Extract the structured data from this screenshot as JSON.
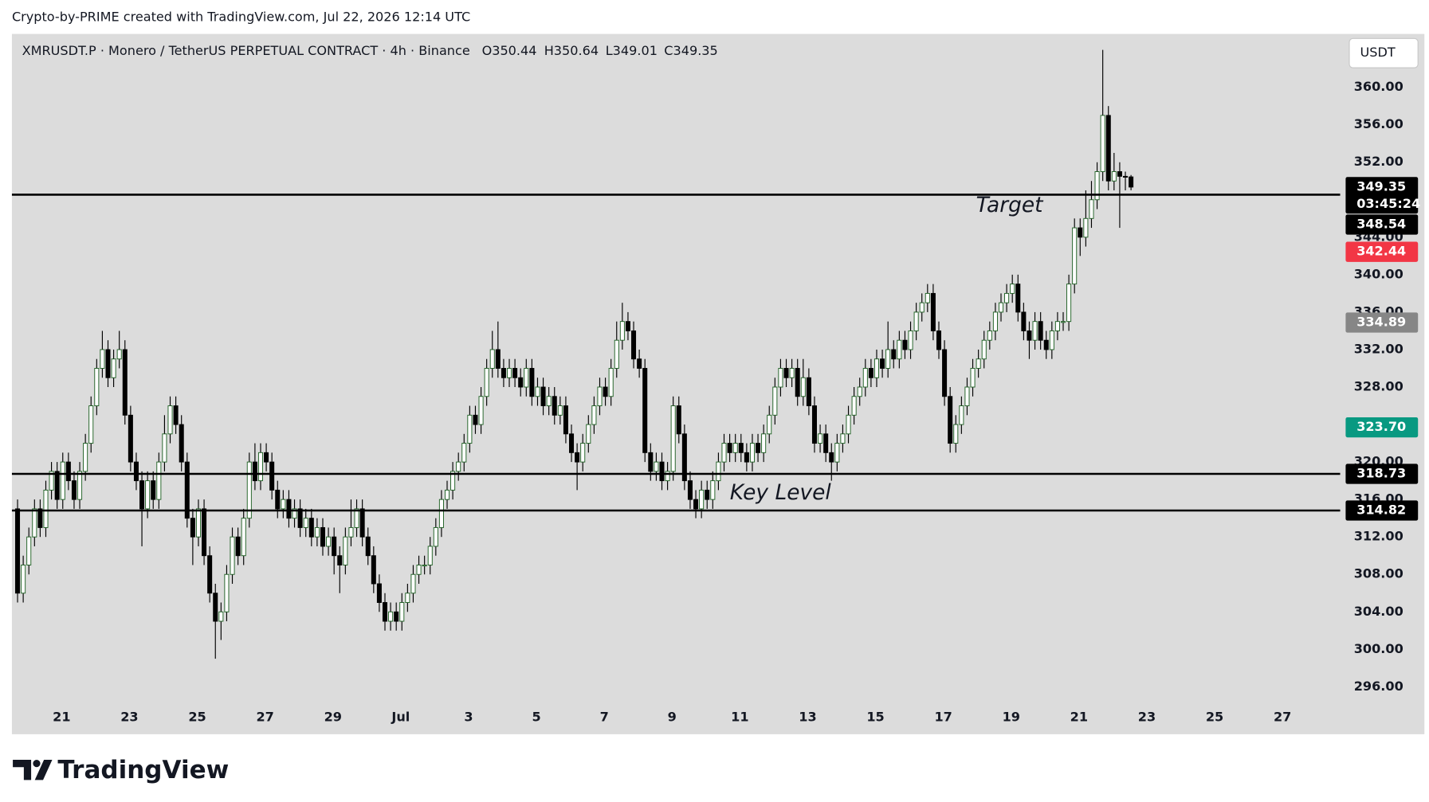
{
  "header": "Crypto-by-PRIME created with TradingView.com, Jul 22, 2026 12:14 UTC",
  "chart_data": {
    "type": "candlestick",
    "title": "XMRUSDT.P · Monero / TetherUS PERPETUAL CONTRACT · 4h · Binance",
    "ohlc_legend": [
      "O350.44",
      "H350.64",
      "L349.01",
      "C349.35"
    ],
    "currency": "USDT",
    "up_color": "#ffffff",
    "up_border": "#1b5e20",
    "down_color": "#000000",
    "open": [
      315,
      306,
      309,
      312,
      315,
      313,
      317,
      319,
      316,
      320,
      318,
      316,
      319,
      322,
      326,
      330,
      332,
      329,
      331,
      332,
      325,
      320,
      318,
      315,
      318,
      316,
      320,
      323,
      326,
      324,
      320,
      314,
      312,
      315,
      310,
      306,
      303,
      304,
      308,
      312,
      310,
      314,
      320,
      318,
      321,
      320,
      317,
      315,
      316,
      314,
      315,
      313,
      314,
      312,
      313,
      311,
      312,
      310,
      309,
      312,
      313,
      315,
      312,
      310,
      307,
      305,
      303,
      304,
      303,
      305,
      306,
      308,
      309,
      309,
      311,
      313,
      316,
      317,
      319,
      320,
      322,
      325,
      324,
      327,
      330,
      332,
      330,
      329,
      330,
      329,
      328,
      330,
      327,
      328,
      326,
      327,
      325,
      326,
      323,
      321,
      320,
      322,
      324,
      326,
      328,
      327,
      330,
      333,
      335,
      334,
      331,
      330,
      321,
      319,
      320,
      318,
      319,
      326,
      323,
      318,
      316,
      315,
      317,
      316,
      318,
      320,
      322,
      321,
      322,
      321,
      320,
      322,
      321,
      323,
      325,
      328,
      330,
      329,
      330,
      327,
      329,
      326,
      322,
      323,
      321,
      320,
      322,
      323,
      325,
      327,
      328,
      330,
      329,
      331,
      330,
      332,
      331,
      333,
      332,
      334,
      336,
      337,
      338,
      334,
      332,
      327,
      322,
      324,
      326,
      328,
      330,
      331,
      333,
      334,
      336,
      337,
      338,
      339,
      336,
      334,
      333,
      335,
      333,
      332,
      334,
      335,
      335,
      339,
      345,
      344,
      346,
      348,
      351,
      357,
      350,
      351,
      350.5,
      350.44
    ],
    "high": [
      316,
      310,
      313,
      316,
      316,
      318,
      320,
      320,
      321,
      321,
      319,
      320,
      323,
      327,
      331,
      334,
      333,
      332,
      334,
      333,
      326,
      321,
      319,
      319,
      319,
      321,
      325,
      327,
      327,
      325,
      321,
      315,
      316,
      316,
      311,
      307,
      305,
      309,
      313,
      313,
      315,
      321,
      322,
      322,
      322,
      321,
      318,
      317,
      317,
      316,
      316,
      315,
      315,
      314,
      314,
      313,
      313,
      311,
      313,
      316,
      316,
      316,
      313,
      311,
      308,
      306,
      305,
      305,
      306,
      307,
      309,
      310,
      310,
      312,
      314,
      317,
      318,
      320,
      321,
      323,
      326,
      326,
      328,
      331,
      334,
      335,
      331,
      331,
      331,
      330,
      331,
      331,
      329,
      329,
      328,
      328,
      327,
      327,
      324,
      322,
      323,
      325,
      327,
      329,
      329,
      331,
      335,
      337,
      336,
      335,
      332,
      331,
      322,
      321,
      321,
      320,
      327,
      327,
      324,
      319,
      317,
      318,
      318,
      319,
      321,
      323,
      323,
      323,
      323,
      322,
      323,
      323,
      324,
      326,
      329,
      331,
      331,
      331,
      331,
      331,
      330,
      327,
      324,
      324,
      322,
      323,
      324,
      326,
      328,
      329,
      331,
      331,
      332,
      332,
      335,
      333,
      334,
      334,
      335,
      337,
      338,
      339,
      339,
      335,
      333,
      328,
      325,
      327,
      329,
      331,
      332,
      334,
      335,
      337,
      338,
      339,
      340,
      340,
      337,
      335,
      336,
      336,
      334,
      335,
      336,
      336,
      340,
      346,
      346,
      349,
      350,
      352,
      364,
      358,
      353,
      352,
      351,
      350.64
    ],
    "low": [
      305,
      305,
      308,
      311,
      312,
      312,
      316,
      315,
      315,
      317,
      315,
      315,
      318,
      321,
      325,
      329,
      328,
      328,
      330,
      324,
      319,
      317,
      311,
      314,
      315,
      315,
      319,
      322,
      323,
      319,
      313,
      309,
      311,
      309,
      305,
      299,
      301,
      303,
      307,
      309,
      309,
      313,
      317,
      317,
      319,
      316,
      314,
      314,
      313,
      313,
      312,
      312,
      311,
      311,
      310,
      310,
      308,
      306,
      308,
      311,
      312,
      311,
      309,
      306,
      304,
      302,
      302,
      302,
      302,
      304,
      305,
      307,
      308,
      308,
      310,
      312,
      315,
      316,
      318,
      319,
      321,
      323,
      323,
      326,
      329,
      329,
      328,
      328,
      328,
      327,
      327,
      326,
      326,
      325,
      325,
      324,
      324,
      322,
      320,
      317,
      319,
      321,
      323,
      325,
      326,
      326,
      329,
      332,
      333,
      330,
      329,
      320,
      318,
      318,
      317,
      317,
      318,
      322,
      317,
      315,
      314,
      314,
      315,
      315,
      317,
      319,
      320,
      320,
      320,
      319,
      319,
      320,
      320,
      322,
      324,
      327,
      328,
      328,
      326,
      326,
      325,
      321,
      321,
      320,
      318,
      319,
      321,
      322,
      324,
      326,
      327,
      328,
      328,
      329,
      329,
      330,
      330,
      331,
      331,
      333,
      335,
      336,
      333,
      331,
      326,
      321,
      321,
      323,
      325,
      327,
      329,
      330,
      332,
      333,
      335,
      336,
      337,
      335,
      333,
      331,
      332,
      332,
      331,
      331,
      333,
      334,
      334,
      338,
      342,
      343,
      345,
      347,
      350,
      349,
      349,
      345,
      349,
      349.01
    ],
    "close": [
      306,
      309,
      312,
      315,
      313,
      317,
      319,
      316,
      320,
      318,
      316,
      319,
      322,
      326,
      330,
      332,
      329,
      331,
      332,
      325,
      320,
      318,
      315,
      318,
      316,
      320,
      323,
      326,
      324,
      320,
      314,
      312,
      315,
      310,
      306,
      303,
      304,
      308,
      312,
      310,
      314,
      320,
      318,
      321,
      320,
      317,
      315,
      316,
      314,
      315,
      313,
      314,
      312,
      313,
      311,
      312,
      310,
      309,
      312,
      313,
      315,
      312,
      310,
      307,
      305,
      303,
      304,
      303,
      305,
      306,
      308,
      309,
      309,
      311,
      313,
      316,
      317,
      319,
      320,
      322,
      325,
      324,
      327,
      330,
      332,
      330,
      329,
      330,
      329,
      328,
      330,
      327,
      328,
      326,
      327,
      325,
      326,
      323,
      321,
      320,
      322,
      324,
      326,
      328,
      327,
      330,
      333,
      335,
      334,
      331,
      330,
      321,
      319,
      320,
      318,
      319,
      326,
      323,
      318,
      316,
      315,
      317,
      316,
      318,
      320,
      322,
      321,
      322,
      321,
      320,
      322,
      321,
      323,
      325,
      328,
      330,
      329,
      330,
      327,
      329,
      326,
      322,
      323,
      321,
      320,
      322,
      323,
      325,
      327,
      328,
      330,
      329,
      331,
      330,
      332,
      331,
      333,
      332,
      334,
      336,
      337,
      338,
      334,
      332,
      327,
      322,
      324,
      326,
      328,
      330,
      331,
      333,
      334,
      336,
      337,
      338,
      339,
      336,
      334,
      333,
      335,
      333,
      332,
      334,
      335,
      335,
      339,
      345,
      344,
      346,
      348,
      351,
      357,
      350,
      351,
      350.5,
      350.44,
      349.35
    ],
    "xlim": [
      -1,
      234
    ],
    "xticks": [
      {
        "value": 7.8,
        "label": "21"
      },
      {
        "value": 19.8,
        "label": "23"
      },
      {
        "value": 31.8,
        "label": "25"
      },
      {
        "value": 43.8,
        "label": "27"
      },
      {
        "value": 55.8,
        "label": "29"
      },
      {
        "value": 67.8,
        "label": "Jul"
      },
      {
        "value": 79.8,
        "label": "3"
      },
      {
        "value": 91.8,
        "label": "5"
      },
      {
        "value": 103.8,
        "label": "7"
      },
      {
        "value": 115.8,
        "label": "9"
      },
      {
        "value": 127.8,
        "label": "11"
      },
      {
        "value": 139.8,
        "label": "13"
      },
      {
        "value": 151.8,
        "label": "15"
      },
      {
        "value": 163.8,
        "label": "17"
      },
      {
        "value": 175.8,
        "label": "19"
      },
      {
        "value": 187.8,
        "label": "21"
      },
      {
        "value": 199.8,
        "label": "23"
      },
      {
        "value": 211.8,
        "label": "25"
      },
      {
        "value": 223.8,
        "label": "27"
      }
    ],
    "ylim": [
      294,
      365.7
    ],
    "yticks": [
      {
        "value": 296,
        "label": "296.00"
      },
      {
        "value": 300,
        "label": "300.00"
      },
      {
        "value": 304,
        "label": "304.00"
      },
      {
        "value": 308,
        "label": "308.00"
      },
      {
        "value": 312,
        "label": "312.00"
      },
      {
        "value": 316,
        "label": "316.00"
      },
      {
        "value": 320,
        "label": "320.00"
      },
      {
        "value": 324,
        "label": "324.00"
      },
      {
        "value": 328,
        "label": "328.00"
      },
      {
        "value": 332,
        "label": "332.00"
      },
      {
        "value": 336,
        "label": "336.00"
      },
      {
        "value": 340,
        "label": "340.00"
      },
      {
        "value": 344,
        "label": "344.00"
      },
      {
        "value": 348,
        "label": "348.00"
      },
      {
        "value": 352,
        "label": "352.00"
      },
      {
        "value": 356,
        "label": "356.00"
      },
      {
        "value": 360,
        "label": "360.00"
      }
    ],
    "grid": false,
    "price_labels": [
      {
        "value": 349.35,
        "color": "#000000"
      },
      {
        "value": 348.54,
        "color": "#000000",
        "line": true
      },
      {
        "value": 342.44,
        "color": "#f23645"
      },
      {
        "value": 334.89,
        "color": "#868686"
      },
      {
        "value": 323.7,
        "label": "323.70",
        "color": "#089981"
      },
      {
        "value": 318.73,
        "color": "#000000",
        "line": true
      },
      {
        "value": 314.82,
        "color": "#000000",
        "line": true
      }
    ],
    "countdown": "03:45:24",
    "annotations": [
      {
        "text": "Target"
      },
      {
        "text": "Key Level"
      }
    ]
  },
  "footer": {
    "logo": "TradingView"
  }
}
